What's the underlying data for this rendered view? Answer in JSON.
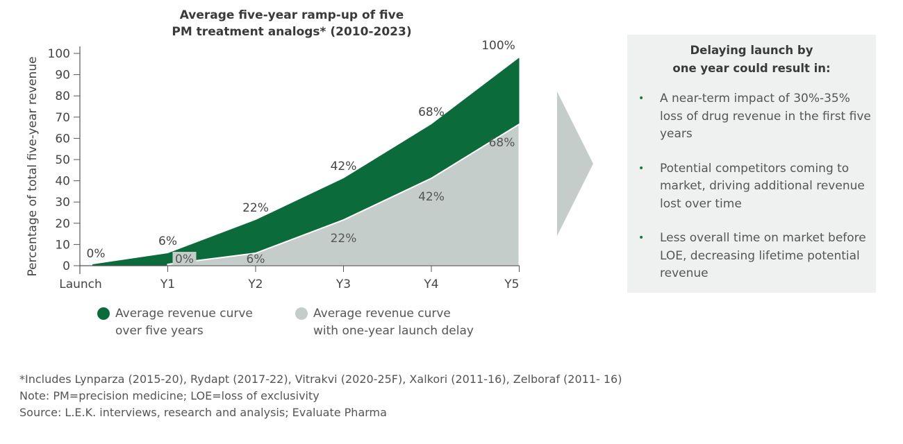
{
  "chart_data": {
    "type": "area",
    "title": "Average five-year ramp-up of five PM treatment analogs* (2010-2023)",
    "title_lines": [
      "Average five-year ramp-up of five",
      "PM treatment analogs* (2010-2023)"
    ],
    "ylabel": "Percentage of total five-year revenue",
    "xlabel": "",
    "categories": [
      "Launch",
      "Y1",
      "Y2",
      "Y3",
      "Y4",
      "Y5"
    ],
    "yticks": [
      0,
      10,
      20,
      30,
      40,
      50,
      60,
      70,
      80,
      90,
      100
    ],
    "ylim": [
      0,
      100
    ],
    "grid": false,
    "legend_placement": "bottom",
    "series": [
      {
        "name": "Average revenue curve over five years",
        "legend_lines": [
          "Average revenue curve",
          "over five years"
        ],
        "color": "#0b6b3a",
        "values": [
          0,
          6,
          22,
          42,
          68,
          100
        ],
        "labels": [
          "0%",
          "6%",
          "22%",
          "42%",
          "68%",
          "100%"
        ]
      },
      {
        "name": "Average revenue curve with one-year launch delay",
        "legend_lines": [
          "Average revenue curve",
          "with one-year launch delay"
        ],
        "color": "#c5cdcb",
        "values": [
          null,
          0,
          6,
          22,
          42,
          68
        ],
        "labels": [
          "",
          "0%",
          "6%",
          "22%",
          "42%",
          "68%"
        ]
      }
    ]
  },
  "arrow_color": "#c5cdcb",
  "panel": {
    "title_lines": [
      "Delaying launch by",
      "one year could result in:"
    ],
    "bullet_color": "#0b7a3e",
    "items": [
      "A near-term impact of 30%-35% loss of drug revenue in the first five years",
      "Potential competitors coming to market, driving additional revenue lost over time",
      "Less overall time on market before LOE, decreasing lifetime potential revenue"
    ]
  },
  "notes": [
    "*Includes Lynparza (2015-20), Rydapt (2017-22), Vitrakvi (2020-25F), Xalkori (2011-16), Zelboraf (2011- 16)",
    "Note: PM=precision medicine; LOE=loss of exclusivity",
    "Source: L.E.K. interviews, research and analysis; Evaluate Pharma"
  ]
}
